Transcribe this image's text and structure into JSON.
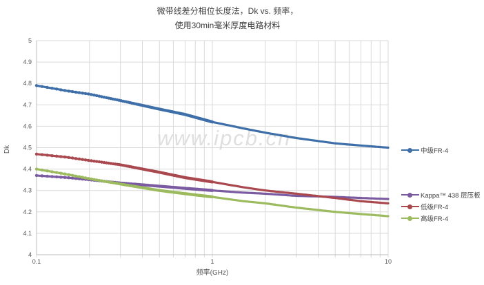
{
  "title": {
    "line1": "微带线差分相位长度法，Dk vs. 频率，",
    "line2": "使用30min毫米厚度电路材料"
  },
  "watermark_text": "www.ipcb.cn",
  "chart_data": {
    "type": "line",
    "title": "微带线差分相位长度法，Dk vs. 频率，使用30min毫米厚度电路材料",
    "xlabel": "频率(GHz)",
    "ylabel": "Dk",
    "x_scale": "log",
    "xlim": [
      0.1,
      10
    ],
    "ylim": [
      4,
      5
    ],
    "grid": true,
    "legend_position": "right",
    "x_tick_values": [
      0.1,
      1,
      10
    ],
    "x_tick_labels": [
      "0.1",
      "1",
      "10"
    ],
    "y_tick_values": [
      5,
      4.9,
      4.8,
      4.7,
      4.6,
      4.5,
      4.4,
      4.3,
      4.2,
      4.1,
      4
    ],
    "y_tick_labels": [
      "5",
      "4.9",
      "4.8",
      "4.7",
      "4.6",
      "4.5",
      "4.4",
      "4.3",
      "4.2",
      "4.1",
      "4"
    ],
    "x": [
      0.1,
      0.15,
      0.2,
      0.3,
      0.5,
      0.7,
      1,
      1.5,
      2,
      3,
      5,
      7,
      10
    ],
    "series": [
      {
        "name": "中级FR-4",
        "color": "#3e6fa9",
        "values": [
          4.79,
          4.765,
          4.75,
          4.72,
          4.68,
          4.655,
          4.62,
          4.59,
          4.57,
          4.545,
          4.52,
          4.51,
          4.5
        ]
      },
      {
        "name": "Kappa™ 438 层压板",
        "color": "#7a5aa0",
        "values": [
          4.37,
          4.36,
          4.35,
          4.335,
          4.32,
          4.31,
          4.3,
          4.29,
          4.285,
          4.275,
          4.27,
          4.265,
          4.26
        ]
      },
      {
        "name": "低级FR-4",
        "color": "#a9484e",
        "values": [
          4.47,
          4.455,
          4.44,
          4.42,
          4.385,
          4.36,
          4.34,
          4.315,
          4.3,
          4.285,
          4.265,
          4.25,
          4.24
        ]
      },
      {
        "name": "高级FR-4",
        "color": "#9cba5e",
        "values": [
          4.4,
          4.375,
          4.355,
          4.33,
          4.3,
          4.285,
          4.27,
          4.25,
          4.24,
          4.22,
          4.2,
          4.19,
          4.18
        ]
      }
    ]
  },
  "colors": {
    "gridline": "#d9d9d9",
    "axis": "#bdbdbd",
    "tick_text": "#595959",
    "watermark": "#dadada"
  }
}
